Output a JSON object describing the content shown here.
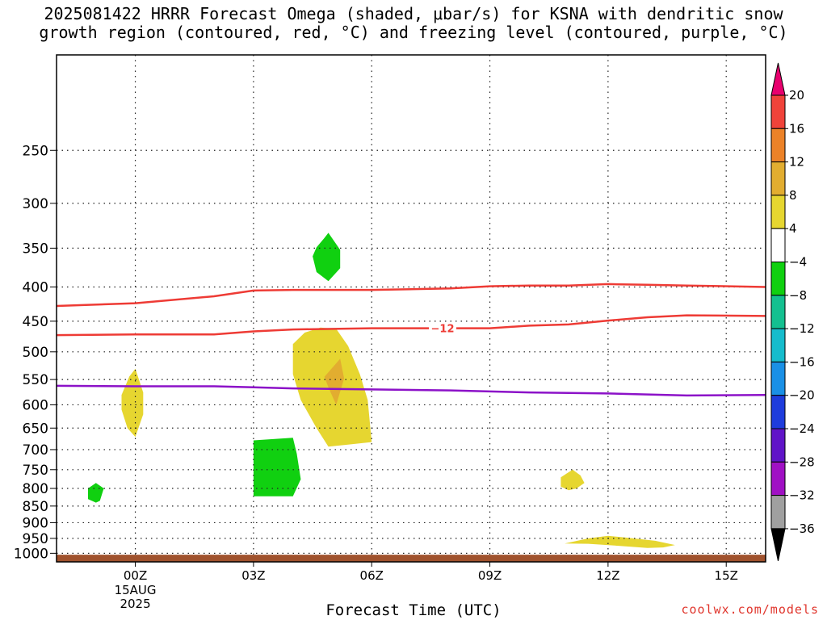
{
  "title": {
    "line1": "2025081422 HRRR Forecast Omega (shaded, μbar/s) for KSNA with dendritic snow",
    "line2": "growth region (contoured, red, °C) and freezing level (contoured, purple, °C)"
  },
  "credit": "coolwx.com/models",
  "chart_data": {
    "type": "contour",
    "x_axis": {
      "label": "Forecast Time (UTC)",
      "range_hours": [
        -2,
        16
      ],
      "ticks": [
        {
          "hour": 0,
          "label": "00Z",
          "sub": [
            "15AUG",
            "2025"
          ]
        },
        {
          "hour": 3,
          "label": "03Z"
        },
        {
          "hour": 6,
          "label": "06Z"
        },
        {
          "hour": 9,
          "label": "09Z"
        },
        {
          "hour": 12,
          "label": "12Z"
        },
        {
          "hour": 15,
          "label": "15Z"
        }
      ]
    },
    "y_axis": {
      "units": "hPa",
      "inverted": true,
      "range": [
        1030,
        180
      ],
      "ticks": [
        250,
        300,
        350,
        400,
        450,
        500,
        550,
        600,
        650,
        700,
        750,
        800,
        850,
        900,
        950,
        1000
      ],
      "grid": true
    },
    "colorbar": {
      "labels": [
        "20",
        "16",
        "12",
        "8",
        "4",
        "-4",
        "-8",
        "-12",
        "-16",
        "-20",
        "-24",
        "-28",
        "-32",
        "-36"
      ],
      "colors": [
        "#e8006e",
        "#f0433a",
        "#ec8228",
        "#e2ad30",
        "#e6d630",
        "#ffffff",
        "#10d010",
        "#14c090",
        "#16bccc",
        "#1a90e6",
        "#1e3cdc",
        "#6014c8",
        "#a010c4",
        "#a0a0a0",
        "#000000"
      ]
    },
    "contours": [
      {
        "name": "-12",
        "color": "#ee3b35",
        "labeled": true,
        "points": [
          [
            -2,
            472
          ],
          [
            0,
            471
          ],
          [
            2,
            471
          ],
          [
            3,
            466
          ],
          [
            4,
            463
          ],
          [
            6,
            461
          ],
          [
            8,
            461
          ],
          [
            9,
            461
          ],
          [
            10,
            457
          ],
          [
            11,
            455
          ],
          [
            12,
            449
          ],
          [
            13,
            444
          ],
          [
            14,
            441
          ],
          [
            16,
            442
          ]
        ]
      },
      {
        "name": "-18",
        "color": "#ee3b35",
        "labeled": false,
        "points": [
          [
            -2,
            427
          ],
          [
            0,
            423
          ],
          [
            2,
            413
          ],
          [
            3,
            405
          ],
          [
            4,
            404
          ],
          [
            6,
            404
          ],
          [
            8,
            402
          ],
          [
            9,
            399
          ],
          [
            10,
            398
          ],
          [
            11,
            398
          ],
          [
            12,
            396
          ],
          [
            13,
            397
          ],
          [
            14,
            398
          ],
          [
            16,
            400
          ]
        ]
      },
      {
        "name": "0",
        "color": "#8c12c8",
        "labeled": false,
        "points": [
          [
            -2,
            562
          ],
          [
            0,
            563
          ],
          [
            2,
            563
          ],
          [
            3,
            565
          ],
          [
            4,
            567
          ],
          [
            6,
            569
          ],
          [
            8,
            571
          ],
          [
            9,
            573
          ],
          [
            10,
            575
          ],
          [
            12,
            577
          ],
          [
            14,
            581
          ],
          [
            16,
            580
          ]
        ]
      }
    ],
    "omega_regions": [
      {
        "value": "-4",
        "points": [
          [
            4.6,
            349
          ],
          [
            4.8,
            338
          ],
          [
            4.9,
            332
          ],
          [
            5.2,
            352
          ],
          [
            5.2,
            375
          ],
          [
            4.9,
            392
          ],
          [
            4.6,
            380
          ],
          [
            4.5,
            360
          ]
        ]
      },
      {
        "value": "4",
        "points": [
          [
            4.0,
            487
          ],
          [
            4.3,
            468
          ],
          [
            4.7,
            460
          ],
          [
            5.1,
            462
          ],
          [
            5.4,
            490
          ],
          [
            5.7,
            540
          ],
          [
            5.9,
            590
          ],
          [
            6.0,
            682
          ],
          [
            5.4,
            688
          ],
          [
            4.9,
            693
          ],
          [
            4.6,
            650
          ],
          [
            4.2,
            590
          ],
          [
            4.0,
            540
          ]
        ]
      },
      {
        "value": "8",
        "points": [
          [
            4.8,
            545
          ],
          [
            5.2,
            512
          ],
          [
            5.3,
            548
          ],
          [
            5.1,
            600
          ],
          [
            4.9,
            565
          ]
        ]
      },
      {
        "value": "4",
        "points": [
          [
            -0.35,
            580
          ],
          [
            -0.15,
            544
          ],
          [
            0.0,
            530
          ],
          [
            0.2,
            575
          ],
          [
            0.2,
            620
          ],
          [
            0.0,
            670
          ],
          [
            -0.2,
            650
          ],
          [
            -0.35,
            610
          ]
        ]
      },
      {
        "value": "-4",
        "points": [
          [
            3.0,
            678
          ],
          [
            4.0,
            672
          ],
          [
            4.1,
            710
          ],
          [
            4.2,
            775
          ],
          [
            4.0,
            822
          ],
          [
            3.0,
            822
          ]
        ]
      },
      {
        "value": "-4",
        "points": [
          [
            -1.2,
            800
          ],
          [
            -1.0,
            785
          ],
          [
            -0.8,
            800
          ],
          [
            -0.9,
            835
          ],
          [
            -1.0,
            840
          ],
          [
            -1.2,
            830
          ]
        ]
      },
      {
        "value": "4",
        "points": [
          [
            10.8,
            770
          ],
          [
            11.1,
            750
          ],
          [
            11.3,
            765
          ],
          [
            11.4,
            785
          ],
          [
            11.2,
            800
          ],
          [
            11.0,
            805
          ],
          [
            10.8,
            795
          ]
        ]
      },
      {
        "value": "4",
        "points": [
          [
            10.9,
            967
          ],
          [
            11.5,
            950
          ],
          [
            12.0,
            942
          ],
          [
            12.5,
            948
          ],
          [
            13.2,
            958
          ],
          [
            13.7,
            972
          ],
          [
            13.4,
            980
          ],
          [
            13.0,
            982
          ],
          [
            12.3,
            975
          ],
          [
            11.5,
            968
          ]
        ]
      }
    ],
    "ground_level_hPa": 1005
  }
}
